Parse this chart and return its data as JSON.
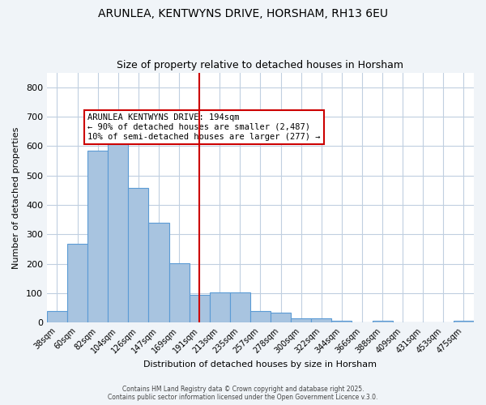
{
  "title": "ARUNLEA, KENTWYNS DRIVE, HORSHAM, RH13 6EU",
  "subtitle": "Size of property relative to detached houses in Horsham",
  "xlabel": "Distribution of detached houses by size in Horsham",
  "ylabel": "Number of detached properties",
  "categories": [
    "38sqm",
    "60sqm",
    "82sqm",
    "104sqm",
    "126sqm",
    "147sqm",
    "169sqm",
    "191sqm",
    "213sqm",
    "235sqm",
    "257sqm",
    "278sqm",
    "300sqm",
    "322sqm",
    "344sqm",
    "366sqm",
    "388sqm",
    "409sqm",
    "431sqm",
    "453sqm",
    "475sqm"
  ],
  "values": [
    38,
    268,
    585,
    610,
    457,
    338,
    202,
    95,
    103,
    103,
    38,
    33,
    13,
    13,
    5,
    0,
    5,
    0,
    0,
    0,
    5
  ],
  "bar_color": "#a8c4e0",
  "bar_edgecolor": "#5b9bd5",
  "vline_x": 7,
  "vline_color": "#cc0000",
  "annotation_text": "ARUNLEA KENTWYNS DRIVE: 194sqm\n← 90% of detached houses are smaller (2,487)\n10% of semi-detached houses are larger (277) →",
  "annotation_box_edgecolor": "#cc0000",
  "annotation_box_facecolor": "#ffffff",
  "ylim": [
    0,
    850
  ],
  "yticks": [
    0,
    100,
    200,
    300,
    400,
    500,
    600,
    700,
    800
  ],
  "footer_line1": "Contains HM Land Registry data © Crown copyright and database right 2025.",
  "footer_line2": "Contains public sector information licensed under the Open Government Licence v.3.0.",
  "background_color": "#f0f4f8",
  "plot_background_color": "#ffffff",
  "grid_color": "#c0cfe0"
}
